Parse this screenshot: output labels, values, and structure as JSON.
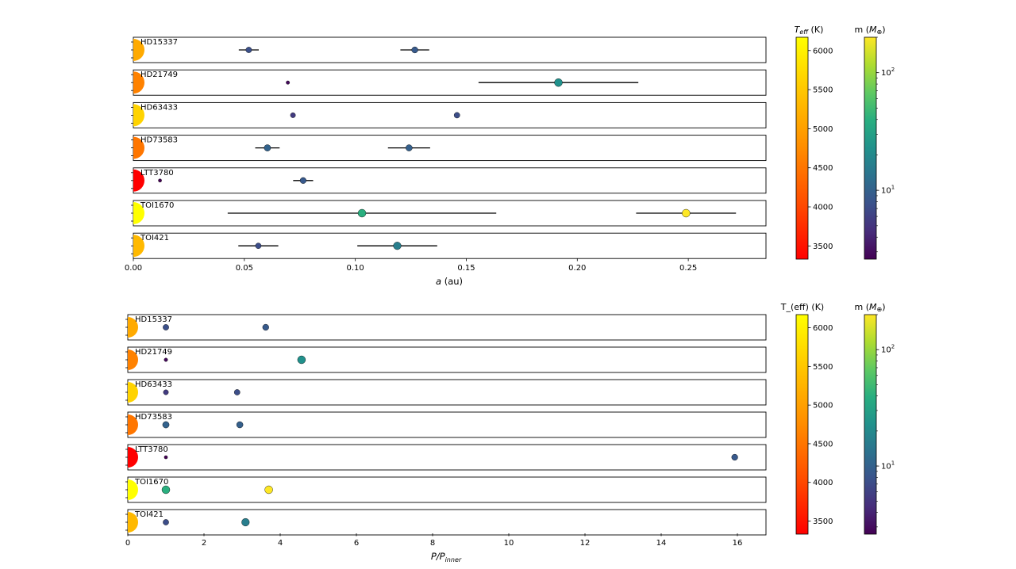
{
  "chart_data": [
    {
      "type": "scatter",
      "panel": "top",
      "xlabel_parts": [
        "a",
        " (au)"
      ],
      "xlim": [
        0,
        0.285
      ],
      "xticks": [
        {
          "v": 0.0,
          "label": "0.00"
        },
        {
          "v": 0.05,
          "label": "0.05"
        },
        {
          "v": 0.1,
          "label": "0.10"
        },
        {
          "v": 0.15,
          "label": "0.15"
        },
        {
          "v": 0.2,
          "label": "0.20"
        },
        {
          "v": 0.25,
          "label": "0.25"
        }
      ],
      "systems": [
        {
          "name": "HD15337",
          "teff": 5125,
          "planets": [
            {
              "x": 0.052,
              "xerr": 0.0045,
              "mass": 7.5
            },
            {
              "x": 0.1268,
              "xerr": 0.0065,
              "mass": 8.8
            }
          ]
        },
        {
          "name": "HD21749",
          "teff": 4640,
          "planets": [
            {
              "x": 0.0696,
              "xerr": 0,
              "mass": 2.9
            },
            {
              "x": 0.1915,
              "xerr": 0.036,
              "mass": 22.7
            }
          ]
        },
        {
          "name": "HD63433",
          "teff": 5640,
          "planets": [
            {
              "x": 0.0719,
              "xerr": 0,
              "mass": 5.5
            },
            {
              "x": 0.1458,
              "xerr": 0,
              "mass": 7.3
            }
          ]
        },
        {
          "name": "HD73583",
          "teff": 4511,
          "planets": [
            {
              "x": 0.0604,
              "xerr": 0.0055,
              "mass": 10.2
            },
            {
              "x": 0.1242,
              "xerr": 0.0095,
              "mass": 9.7
            }
          ]
        },
        {
          "name": "LTT3780",
          "teff": 3331,
          "planets": [
            {
              "x": 0.012,
              "xerr": 0,
              "mass": 2.6
            },
            {
              "x": 0.0765,
              "xerr": 0.0045,
              "mass": 8.6
            }
          ]
        },
        {
          "name": "TOI1670",
          "teff": 6170,
          "planets": [
            {
              "x": 0.103,
              "xerr": 0.0605,
              "mass": 40
            },
            {
              "x": 0.249,
              "xerr": 0.0225,
              "mass": 200
            }
          ]
        },
        {
          "name": "TOI421",
          "teff": 5325,
          "planets": [
            {
              "x": 0.0563,
              "xerr": 0.009,
              "mass": 7.2
            },
            {
              "x": 0.1189,
              "xerr": 0.018,
              "mass": 16.4
            }
          ]
        }
      ]
    },
    {
      "type": "scatter",
      "panel": "bottom",
      "xlabel_parts": [
        "P/P",
        "inner"
      ],
      "xlim": [
        0,
        16.75
      ],
      "xticks": [
        {
          "v": 0,
          "label": "0"
        },
        {
          "v": 2,
          "label": "2"
        },
        {
          "v": 4,
          "label": "4"
        },
        {
          "v": 6,
          "label": "6"
        },
        {
          "v": 8,
          "label": "8"
        },
        {
          "v": 10,
          "label": "10"
        },
        {
          "v": 12,
          "label": "12"
        },
        {
          "v": 14,
          "label": "14"
        },
        {
          "v": 16,
          "label": "16"
        }
      ],
      "systems": [
        {
          "name": "HD15337",
          "teff": 5125,
          "planets": [
            {
              "x": 1.0,
              "mass": 7.5
            },
            {
              "x": 3.62,
              "mass": 8.8
            }
          ]
        },
        {
          "name": "HD21749",
          "teff": 4640,
          "planets": [
            {
              "x": 1.0,
              "mass": 2.9
            },
            {
              "x": 4.56,
              "mass": 22.7
            }
          ]
        },
        {
          "name": "HD63433",
          "teff": 5640,
          "planets": [
            {
              "x": 1.0,
              "mass": 5.5
            },
            {
              "x": 2.87,
              "mass": 7.3
            }
          ]
        },
        {
          "name": "HD73583",
          "teff": 4511,
          "planets": [
            {
              "x": 1.0,
              "mass": 10.2
            },
            {
              "x": 2.94,
              "mass": 9.7
            }
          ]
        },
        {
          "name": "LTT3780",
          "teff": 3331,
          "planets": [
            {
              "x": 1.0,
              "mass": 2.6
            },
            {
              "x": 15.93,
              "mass": 8.6
            }
          ]
        },
        {
          "name": "TOI1670",
          "teff": 6170,
          "planets": [
            {
              "x": 1.0,
              "mass": 40
            },
            {
              "x": 3.7,
              "mass": 200
            }
          ]
        },
        {
          "name": "TOI421",
          "teff": 5325,
          "planets": [
            {
              "x": 1.0,
              "mass": 7.2
            },
            {
              "x": 3.09,
              "mass": 16.4
            }
          ]
        }
      ]
    }
  ],
  "colorbars": {
    "top_teff": {
      "title_parts": [
        "T",
        "eff",
        " (K)"
      ],
      "range": [
        3331,
        6170
      ],
      "ticks": [
        3500,
        4000,
        4500,
        5000,
        5500,
        6000
      ]
    },
    "bottom_teff": {
      "title": "T_(eff) (K)",
      "range": [
        3331,
        6170
      ],
      "ticks": [
        3500,
        4000,
        4500,
        5000,
        5500,
        6000
      ]
    },
    "mass": {
      "title_parts": [
        "m (",
        "M",
        "⊕",
        ")"
      ],
      "range": [
        2.6,
        200
      ],
      "scale": "log",
      "ticks": [
        {
          "v": 10,
          "base": "10",
          "exp": "1"
        },
        {
          "v": 100,
          "base": "10",
          "exp": "2"
        }
      ]
    }
  }
}
